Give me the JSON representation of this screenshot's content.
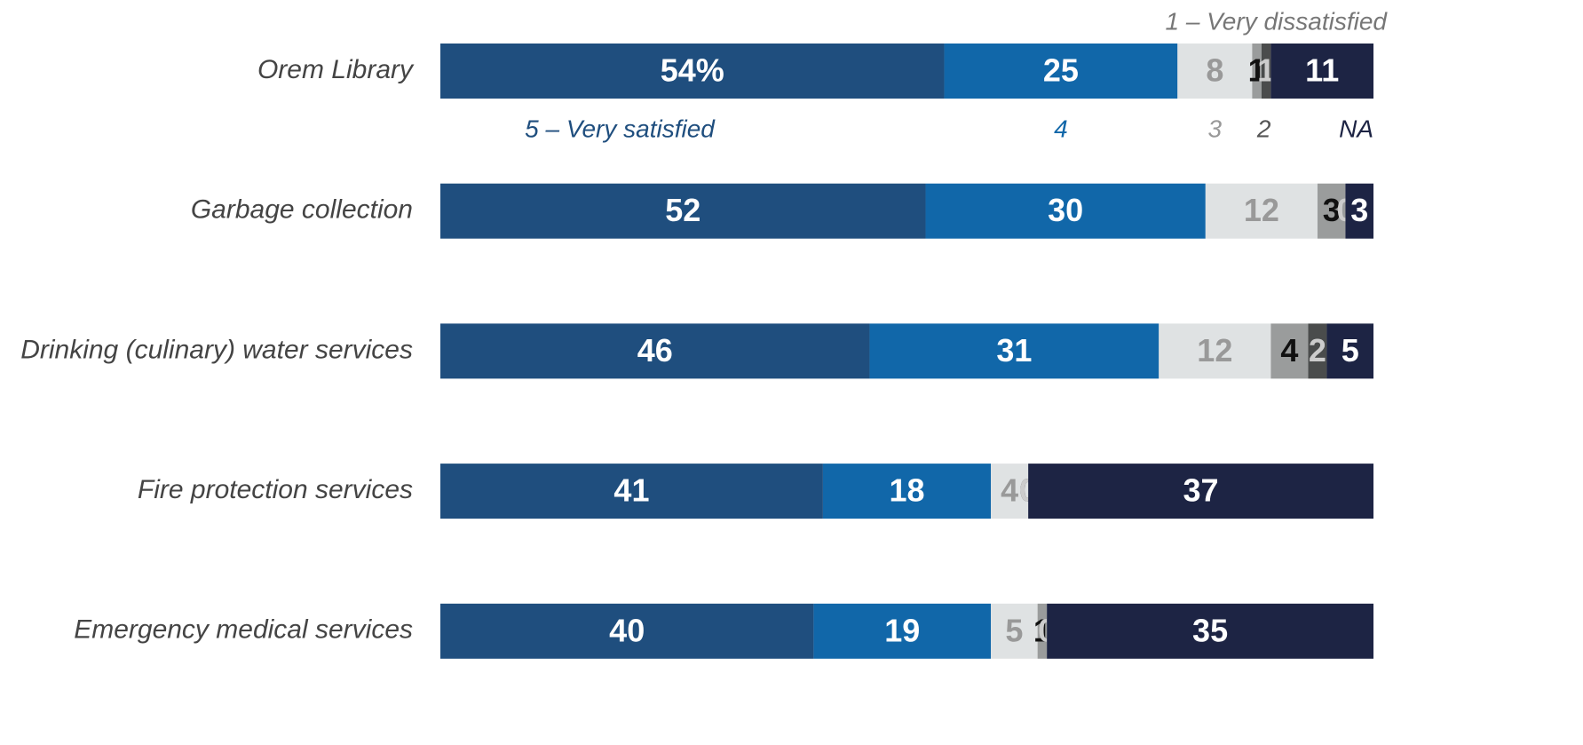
{
  "chart_data": {
    "type": "stacked-bar-horizontal",
    "categories": [
      "Orem Library",
      "Garbage collection",
      "Drinking (culinary) water services",
      "Fire protection services",
      "Emergency medical services"
    ],
    "xlim": [
      0,
      100
    ],
    "series": [
      {
        "name": "5 – Very satisfied",
        "color": "#1f4e7e",
        "values": [
          54,
          52,
          46,
          41,
          40
        ],
        "value_labels": [
          "54%",
          "52",
          "46",
          "41",
          "40"
        ]
      },
      {
        "name": "4",
        "color": "#1167a9",
        "values": [
          25,
          30,
          31,
          18,
          19
        ]
      },
      {
        "name": "3",
        "color": "#dfe2e3",
        "values": [
          8,
          12,
          12,
          4,
          5
        ]
      },
      {
        "name": "2",
        "color": "#9a9c9c",
        "values": [
          1,
          3,
          4,
          0,
          1
        ]
      },
      {
        "name": "1 – Very dissatisfied",
        "color": "#4a4c4c",
        "values": [
          1,
          0,
          2,
          0,
          0
        ]
      },
      {
        "name": "NA",
        "color": "#1d2444",
        "values": [
          11,
          3,
          5,
          37,
          35
        ]
      }
    ]
  }
}
